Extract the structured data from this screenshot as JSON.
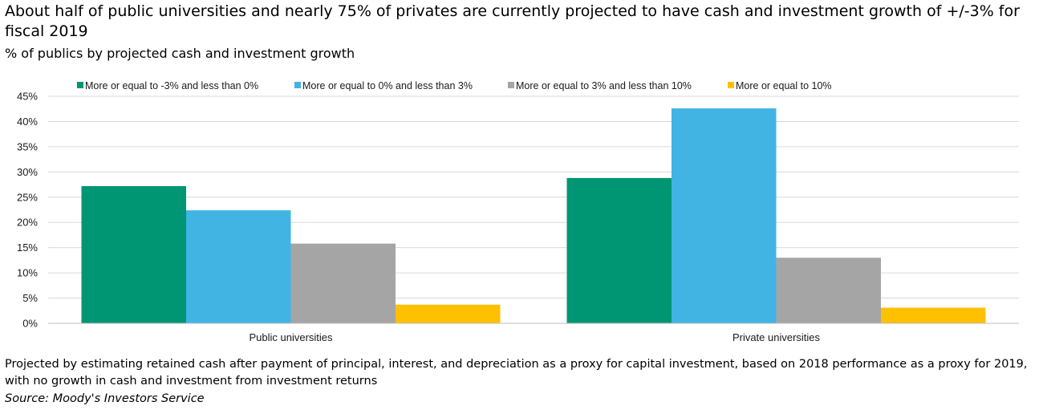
{
  "title": "About half of public universities and nearly 75% of privates are currently projected to have cash and investment growth of +/-3% for fiscal 2019",
  "subtitle": "% of publics by projected cash and investment growth",
  "footnote": "Projected by estimating retained cash after payment of principal, interest, and depreciation as a proxy for capital investment, based on 2018 performance as a proxy for 2019, with no growth in cash and investment from investment returns",
  "source": "Source: Moody's Investors Service",
  "chart_data": {
    "type": "bar",
    "categories": [
      "Public universities",
      "Private universities"
    ],
    "series": [
      {
        "name": "More or equal to -3% and less than 0%",
        "color": "#009673",
        "values": [
          27.2,
          28.8
        ]
      },
      {
        "name": "More or equal to 0% and less than 3%",
        "color": "#41b4e4",
        "values": [
          22.4,
          42.6
        ]
      },
      {
        "name": "More or equal to 3% and less than 10%",
        "color": "#a5a5a5",
        "values": [
          15.8,
          13.0
        ]
      },
      {
        "name": "More or equal to 10%",
        "color": "#ffc000",
        "values": [
          3.7,
          3.1
        ]
      }
    ],
    "yticks": [
      "0%",
      "5%",
      "10%",
      "15%",
      "20%",
      "25%",
      "30%",
      "35%",
      "40%",
      "45%"
    ],
    "ylim": [
      0,
      45
    ],
    "grid": true,
    "legend_position": "top"
  }
}
